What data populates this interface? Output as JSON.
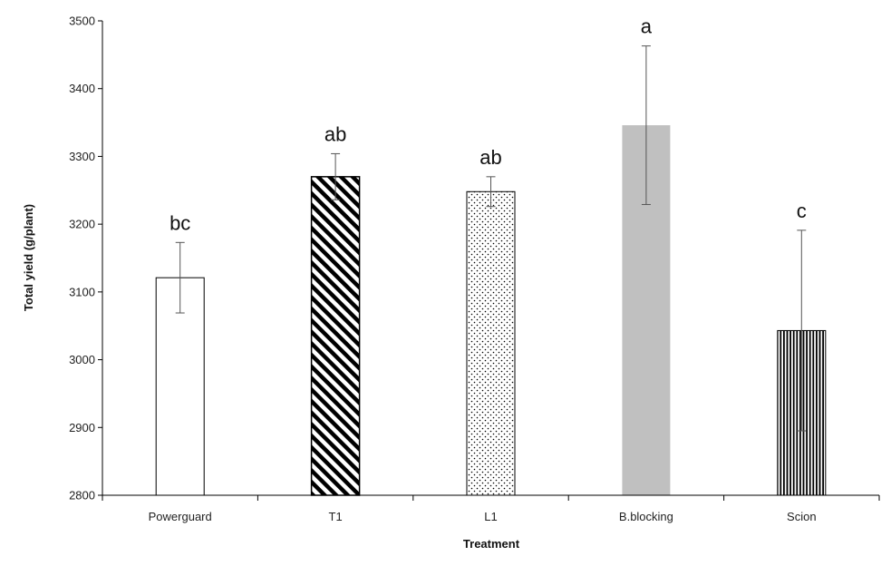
{
  "chart_data": {
    "type": "bar",
    "title": "",
    "xlabel": "Treatment",
    "ylabel": "Total yield (g/plant)",
    "ylim": [
      2800,
      3500
    ],
    "yticks": [
      2800,
      2900,
      3000,
      3100,
      3200,
      3300,
      3400,
      3500
    ],
    "grid": false,
    "categories": [
      "Powerguard",
      "T1",
      "L1",
      "B.blocking",
      "Scion"
    ],
    "values": [
      3121,
      3270,
      3248,
      3346,
      3043
    ],
    "errors": [
      52,
      34,
      22,
      117,
      148
    ],
    "significance": [
      "bc",
      "ab",
      "ab",
      "a",
      "c"
    ],
    "patterns": [
      "none",
      "diagonal",
      "dots",
      "solid",
      "vertical"
    ]
  },
  "colors": {
    "axis": "#000000",
    "bar_outline": "#000000",
    "solid_fill": "#c0c0c0",
    "error_bar": "#555555"
  }
}
